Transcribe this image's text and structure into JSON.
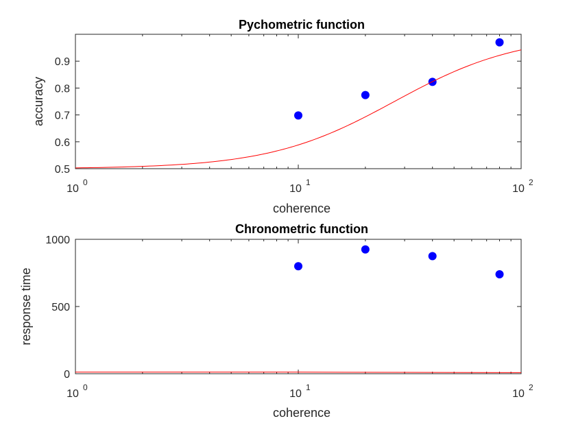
{
  "chart_data": [
    {
      "type": "scatter",
      "title": "Pychometric function",
      "xlabel": "coherence",
      "ylabel": "accuracy",
      "xscale": "log",
      "xlim": [
        1,
        100
      ],
      "ylim": [
        0.5,
        1.0
      ],
      "xticks": [
        1,
        10,
        100
      ],
      "xtick_labels": [
        "10",
        "10",
        "10"
      ],
      "xtick_exponents": [
        "0",
        "1",
        "2"
      ],
      "yticks": [
        0.5,
        0.6,
        0.7,
        0.8,
        0.9
      ],
      "ytick_labels": [
        "0.5",
        "0.6",
        "0.7",
        "0.8",
        "0.9"
      ],
      "grid": false,
      "series": [
        {
          "kind": "points",
          "color": "#0000ff",
          "x": [
            10,
            20,
            40,
            80
          ],
          "y": [
            0.698,
            0.774,
            0.823,
            0.97
          ]
        },
        {
          "kind": "line",
          "color": "#ff0000",
          "function": "logistic",
          "x": [
            1,
            2,
            3,
            5,
            10,
            15,
            20,
            30,
            40,
            60,
            80,
            100
          ],
          "y": [
            0.512,
            0.523,
            0.534,
            0.557,
            0.618,
            0.68,
            0.73,
            0.812,
            0.87,
            0.935,
            0.964,
            0.976
          ]
        }
      ]
    },
    {
      "type": "scatter",
      "title": "Chronometric function",
      "xlabel": "coherence",
      "ylabel": "response time",
      "xscale": "log",
      "xlim": [
        1,
        100
      ],
      "ylim": [
        0,
        1000
      ],
      "xticks": [
        1,
        10,
        100
      ],
      "xtick_labels": [
        "10",
        "10",
        "10"
      ],
      "xtick_exponents": [
        "0",
        "1",
        "2"
      ],
      "yticks": [
        0,
        500,
        1000
      ],
      "ytick_labels": [
        "0",
        "500",
        "1000"
      ],
      "grid": false,
      "series": [
        {
          "kind": "points",
          "color": "#0000ff",
          "x": [
            10,
            20,
            40,
            80
          ],
          "y": [
            800,
            925,
            875,
            740
          ]
        },
        {
          "kind": "line",
          "color": "#ff0000",
          "x": [
            1,
            10,
            30,
            60,
            100
          ],
          "y": [
            12,
            12,
            10,
            9,
            8
          ]
        }
      ]
    }
  ],
  "colors": {
    "axis": "#262626",
    "marker": "#0000ff",
    "fit": "#ff0000",
    "background": "#ffffff"
  }
}
